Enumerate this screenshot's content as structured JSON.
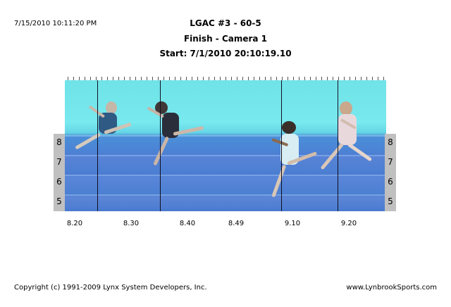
{
  "timestamp": "7/15/2010 10:11:20 PM",
  "header": {
    "title": "LGAC #3 - 60-5",
    "subtitle": "Finish - Camera 1",
    "start": "Start: 7/1/2010 20:10:19.10"
  },
  "lanes": [
    "8",
    "7",
    "6",
    "5"
  ],
  "time_labels": [
    "8.20",
    "8.30",
    "8.40",
    "8.49",
    "9.10",
    "9.20"
  ],
  "footer": {
    "copyright": "Copyright (c) 1991-2009 Lynx System Developers, Inc.",
    "website": "www.LynbrookSports.com"
  },
  "colors": {
    "sky": "#78e9ee",
    "track": "#4d7fd4",
    "lane_box": "#c0c0c0"
  }
}
